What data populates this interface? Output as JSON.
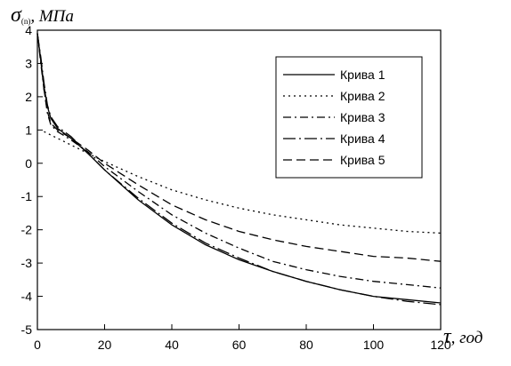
{
  "chart_data": {
    "type": "line",
    "ylabel_symbol": "σ",
    "ylabel_subscript": "(n)",
    "ylabel_unit": ", МПа",
    "xlabel_symbol": "τ",
    "xlabel_unit": ", год",
    "xlim": [
      0,
      120
    ],
    "ylim": [
      -5,
      4
    ],
    "xticks": [
      0,
      20,
      40,
      60,
      80,
      100,
      120
    ],
    "yticks": [
      4,
      3,
      2,
      1,
      0,
      -1,
      -2,
      -3,
      -4,
      -5
    ],
    "grid": false,
    "legend_position": "top-right",
    "series": [
      {
        "name": "Крива 1",
        "dash": "solid",
        "x": [
          0,
          1,
          2,
          3,
          4,
          6,
          10,
          15,
          20,
          30,
          40,
          50,
          60,
          70,
          80,
          90,
          100,
          110,
          120
        ],
        "y": [
          3.9,
          3.1,
          2.3,
          1.7,
          1.35,
          1.05,
          0.75,
          0.3,
          -0.2,
          -1.1,
          -1.85,
          -2.45,
          -2.9,
          -3.25,
          -3.55,
          -3.8,
          -4.0,
          -4.1,
          -4.2
        ]
      },
      {
        "name": "Крива 2",
        "dash": "dotted",
        "x": [
          2,
          4,
          6,
          10,
          15,
          20,
          30,
          40,
          50,
          60,
          70,
          80,
          90,
          100,
          110,
          120
        ],
        "y": [
          0.95,
          0.85,
          0.75,
          0.55,
          0.3,
          0.05,
          -0.4,
          -0.8,
          -1.1,
          -1.35,
          -1.55,
          -1.7,
          -1.85,
          -1.95,
          -2.05,
          -2.1
        ]
      },
      {
        "name": "Крива 3",
        "dash": "dashdot",
        "x": [
          0,
          1,
          2,
          3,
          4,
          6,
          10,
          15,
          20,
          30,
          40,
          50,
          60,
          70,
          80,
          90,
          100,
          110,
          120
        ],
        "y": [
          3.9,
          3.0,
          2.2,
          1.5,
          1.15,
          0.95,
          0.7,
          0.35,
          -0.1,
          -0.85,
          -1.55,
          -2.1,
          -2.55,
          -2.95,
          -3.2,
          -3.4,
          -3.55,
          -3.65,
          -3.75
        ]
      },
      {
        "name": "Крива 4",
        "dash": "dashdotlong",
        "x": [
          0,
          1,
          2,
          3,
          4,
          6,
          10,
          15,
          20,
          30,
          40,
          50,
          60,
          70,
          80,
          90,
          100,
          110,
          120
        ],
        "y": [
          3.9,
          3.2,
          2.4,
          1.75,
          1.4,
          1.1,
          0.8,
          0.3,
          -0.2,
          -1.05,
          -1.8,
          -2.4,
          -2.85,
          -3.25,
          -3.55,
          -3.8,
          -4.0,
          -4.15,
          -4.25
        ]
      },
      {
        "name": "Крива 5",
        "dash": "dashed",
        "x": [
          0,
          1,
          2,
          3,
          4,
          6,
          10,
          15,
          20,
          30,
          40,
          50,
          60,
          70,
          80,
          90,
          100,
          110,
          120
        ],
        "y": [
          3.9,
          3.1,
          2.2,
          1.55,
          1.2,
          1.0,
          0.75,
          0.4,
          0.0,
          -0.65,
          -1.25,
          -1.7,
          -2.05,
          -2.3,
          -2.5,
          -2.65,
          -2.8,
          -2.85,
          -2.95
        ]
      }
    ]
  }
}
